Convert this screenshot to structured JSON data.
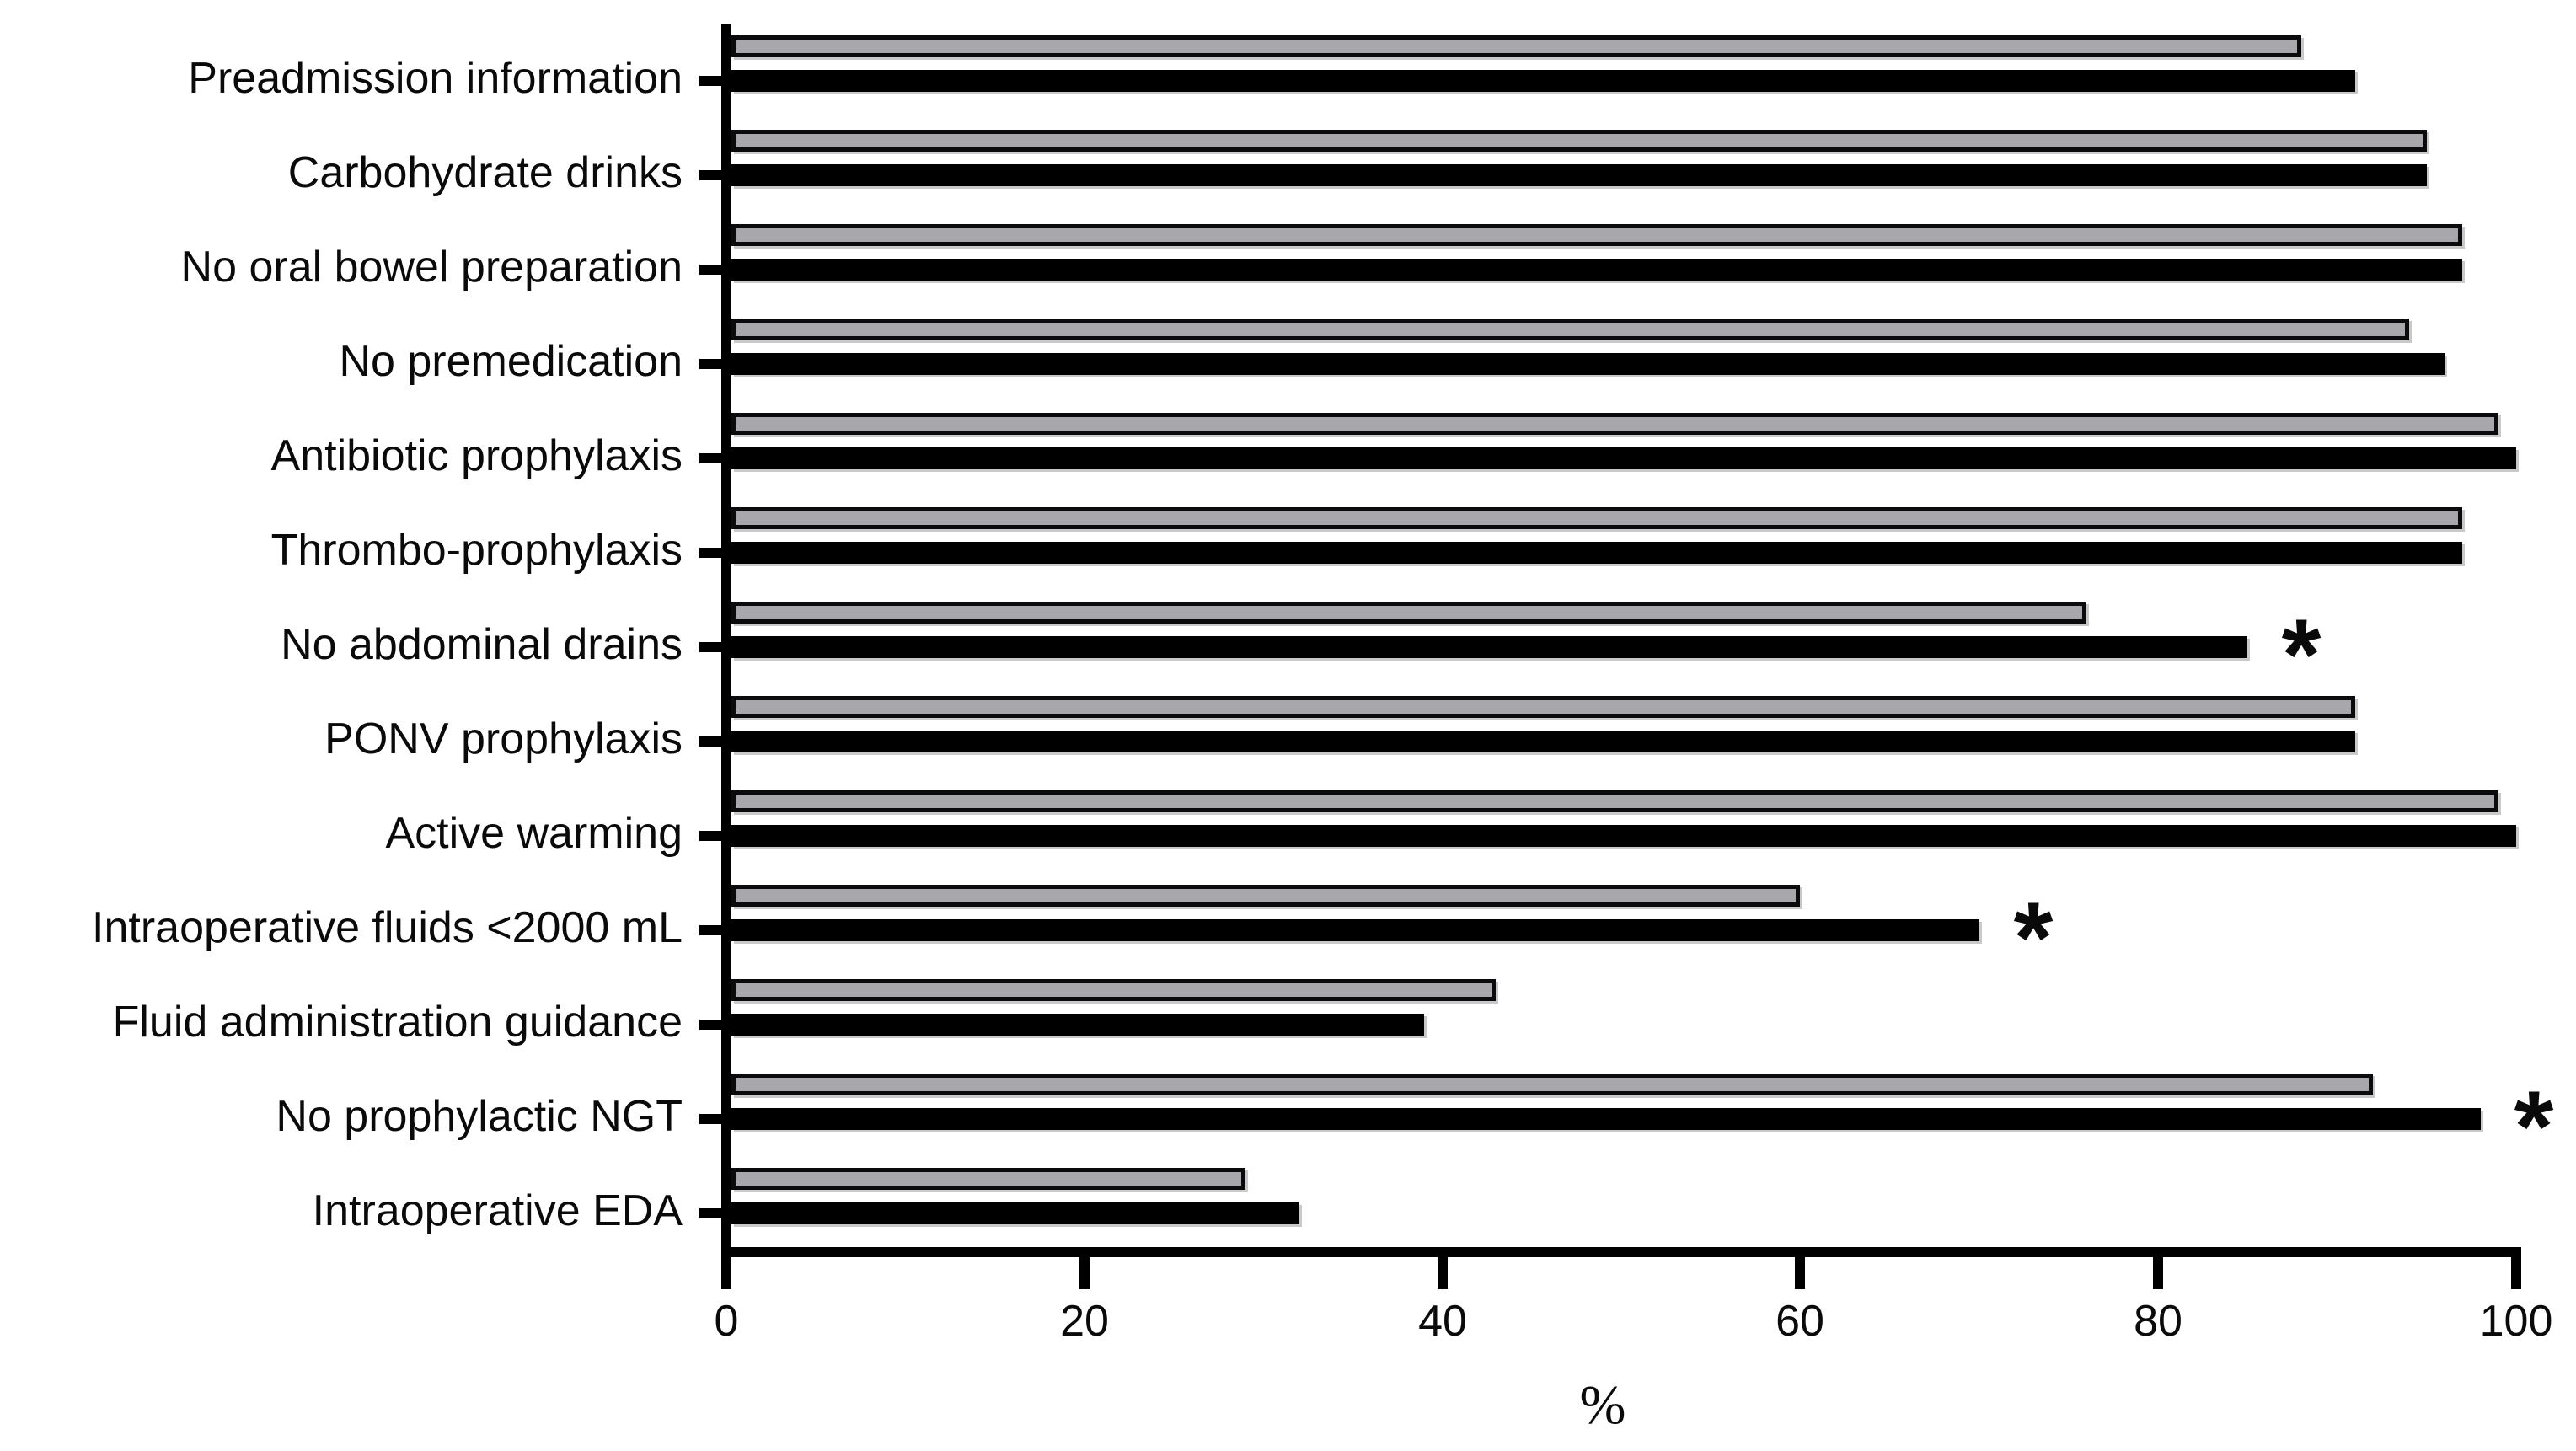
{
  "chart_data": {
    "type": "bar",
    "orientation": "horizontal",
    "title": "",
    "xlabel": "%",
    "xlim": [
      0,
      100
    ],
    "xticks": [
      0,
      20,
      40,
      60,
      80,
      100
    ],
    "grid": false,
    "legend": "none",
    "categories": [
      "Preadmission information",
      "Carbohydrate drinks",
      "No oral bowel preparation",
      "No premedication",
      "Antibiotic prophylaxis",
      "Thrombo-prophylaxis",
      "No abdominal drains",
      "PONV prophylaxis",
      "Active warming",
      "Intraoperative fluids <2000 mL",
      "Fluid administration guidance",
      "No prophylactic NGT",
      "Intraoperative EDA"
    ],
    "series": [
      {
        "name": "Gray bars",
        "color": "#a8a8ac",
        "values": [
          88,
          95,
          97,
          94,
          99,
          97,
          76,
          91,
          99,
          60,
          43,
          92,
          29
        ]
      },
      {
        "name": "Black bars",
        "color": "#000000",
        "values": [
          91,
          95,
          97,
          96,
          100,
          97,
          85,
          91,
          100,
          70,
          39,
          98,
          32
        ]
      }
    ],
    "annotations": [
      {
        "category_index": 6,
        "category": "No abdominal drains",
        "symbol": "*",
        "x_value": 88
      },
      {
        "category_index": 9,
        "category": "Intraoperative fluids <2000 mL",
        "symbol": "*",
        "x_value": 73
      },
      {
        "category_index": 11,
        "category": "No prophylactic NGT",
        "symbol": "*",
        "x_value": 101
      }
    ]
  }
}
